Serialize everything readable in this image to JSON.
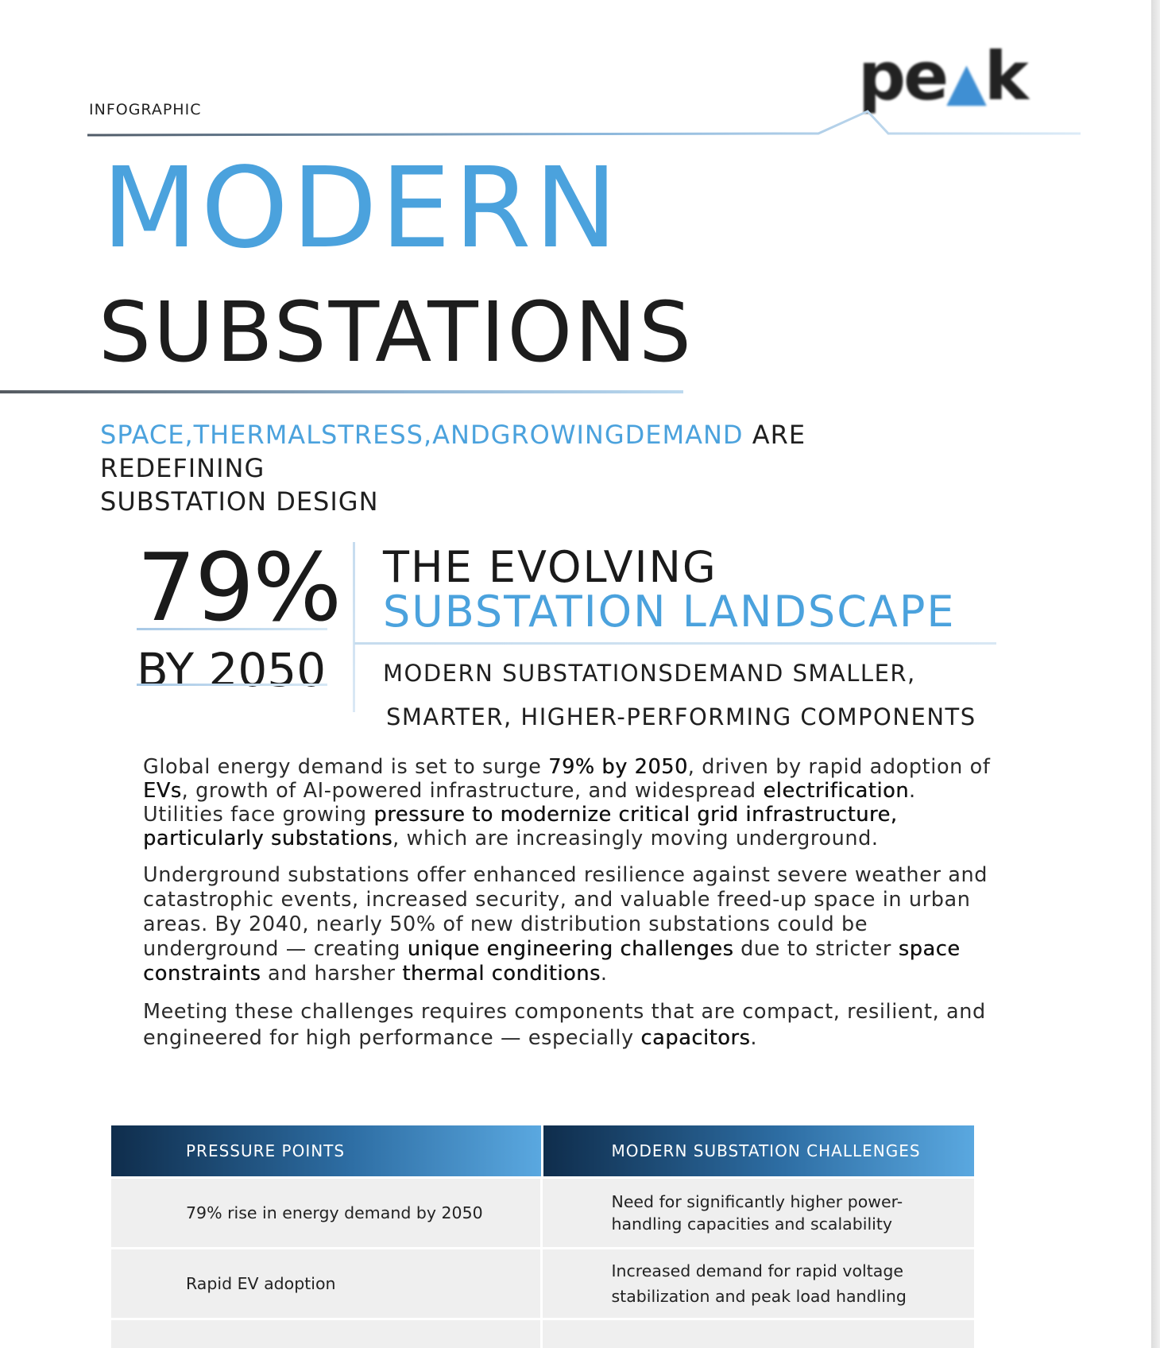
{
  "document": {
    "type_label": "INFOGRAPHIC",
    "logo": {
      "before": "pe",
      "mark": "▲",
      "after": "k"
    }
  },
  "title": {
    "line1": "MODERN",
    "line2": "SUBSTATIONS"
  },
  "subtitle": {
    "highlight": "SPACE,THERMALSTRESS,ANDGROWINGDEMAND",
    "rest_line1": " ARE REDEFINING",
    "rest_line2": "SUBSTATION DESIGN"
  },
  "stat": {
    "value": "79%",
    "caption": "BY 2050"
  },
  "landscape": {
    "title_line1": "THE EVOLVING",
    "title_line2": "SUBSTATION LANDSCAPE",
    "sub_line1": "MODERN SUBSTATIONSDEMAND SMALLER,",
    "sub_line2": "SMARTER, HIGHER-PERFORMING COMPONENTS"
  },
  "body": {
    "p1": {
      "a": "Global energy demand is set to surge ",
      "b": "79% by 2050",
      "c": ", driven by rapid adoption of ",
      "d": "EVs",
      "e": ", growth of AI-powered infrastructure, and widespread ",
      "f": "electrification",
      "g": ". Utilities face growing ",
      "h": "pressure to modernize critical grid infrastructure, particularly substations",
      "i": ", which are increasingly moving underground."
    },
    "p2": {
      "a": "Underground substations offer enhanced resilience against severe weather and catastrophic events, increased security, and valuable freed-up space in urban areas. By 2040, nearly 50% of new distribution substations could be underground — creating ",
      "b": "unique engineering challenges",
      "c": " due to stricter ",
      "d": "space constraints",
      "e": " and harsher ",
      "f": "thermal conditions",
      "g": "."
    },
    "p3": {
      "a": "Meeting these challenges requires components that are compact, resilient, and engineered for high performance — especially ",
      "b": "capacitors",
      "c": "."
    }
  },
  "table": {
    "headers": [
      "PRESSURE POINTS",
      "MODERN SUBSTATION CHALLENGES"
    ],
    "rows": [
      [
        "79% rise in energy demand by 2050",
        "Need for significantly higher power-handling capacities and scalability"
      ],
      [
        "Rapid EV adoption",
        "Increased demand for rapid voltage stabilization and peak load handling"
      ]
    ]
  }
}
